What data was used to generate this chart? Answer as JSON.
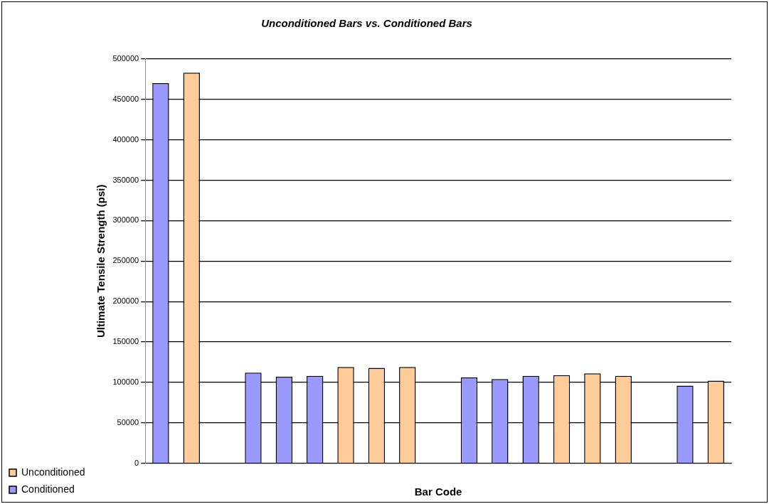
{
  "chart_data": {
    "type": "bar",
    "title": "Unconditioned Bars vs. Conditioned Bars",
    "xlabel": "Bar Code",
    "ylabel": "Ultimate Tensile Strength (psi)",
    "categories": [
      null,
      null,
      null,
      null,
      null,
      null,
      null,
      null,
      null,
      null,
      null,
      null,
      null,
      null,
      null,
      null,
      null,
      null,
      null
    ],
    "series": [
      {
        "name": "Unconditioned",
        "color": "#ffcc99",
        "values": [
          null,
          483000,
          null,
          null,
          null,
          null,
          119000,
          118000,
          119000,
          null,
          null,
          null,
          null,
          109000,
          111000,
          108000,
          null,
          null,
          102000
        ]
      },
      {
        "name": "Conditioned",
        "color": "#9999ff",
        "values": [
          470000,
          null,
          null,
          112000,
          107000,
          108000,
          null,
          null,
          null,
          null,
          106000,
          104000,
          108000,
          null,
          null,
          null,
          null,
          96000,
          null
        ]
      }
    ],
    "ylim": [
      0,
      500000
    ],
    "yticks": [
      0,
      50000,
      100000,
      150000,
      200000,
      250000,
      300000,
      350000,
      400000,
      450000,
      500000
    ],
    "grid": "y",
    "legend": "bottom left"
  }
}
